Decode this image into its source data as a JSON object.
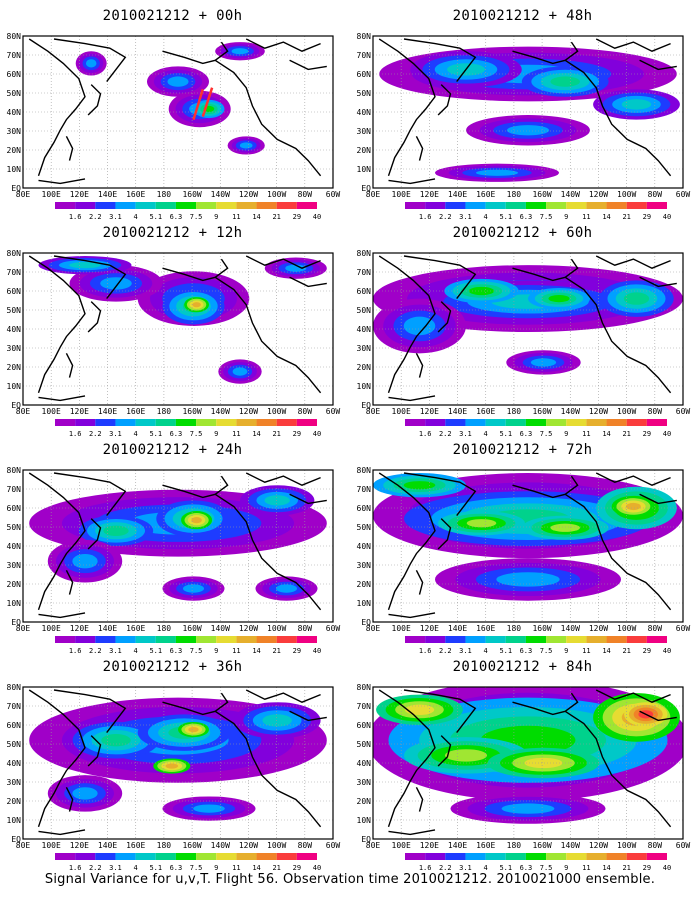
{
  "panels": [
    {
      "title": "2010021212 + 00h",
      "intensity": 1
    },
    {
      "title": "2010021212 + 48h",
      "intensity": 5
    },
    {
      "title": "2010021212 + 12h",
      "intensity": 2
    },
    {
      "title": "2010021212 + 60h",
      "intensity": 6
    },
    {
      "title": "2010021212 + 24h",
      "intensity": 3
    },
    {
      "title": "2010021212 + 72h",
      "intensity": 7
    },
    {
      "title": "2010021212 + 36h",
      "intensity": 4
    },
    {
      "title": "2010021212 + 84h",
      "intensity": 8
    }
  ],
  "lat_labels": [
    "80N",
    "70N",
    "60N",
    "50N",
    "40N",
    "30N",
    "20N",
    "10N",
    "EQ"
  ],
  "lon_labels": [
    "80E",
    "100E",
    "120E",
    "140E",
    "160E",
    "180",
    "160W",
    "140W",
    "120W",
    "100W",
    "80W",
    "60W"
  ],
  "colorbar": {
    "labels": [
      "1.6",
      "2.2",
      "3.1",
      "4",
      "5.1",
      "6.3",
      "7.5",
      "9",
      "11",
      "14",
      "21",
      "29",
      "40"
    ],
    "colors": [
      "#a000c8",
      "#8200dc",
      "#1e3cff",
      "#00a0ff",
      "#00c8c8",
      "#00d28c",
      "#00dc00",
      "#a0e632",
      "#e6dc32",
      "#e6af2d",
      "#f08228",
      "#fa3c3c",
      "#f00082"
    ]
  },
  "footer": "Signal Variance for u,v,T. Flight 56. Observation time 2010021212. 2010021000 ensemble."
}
